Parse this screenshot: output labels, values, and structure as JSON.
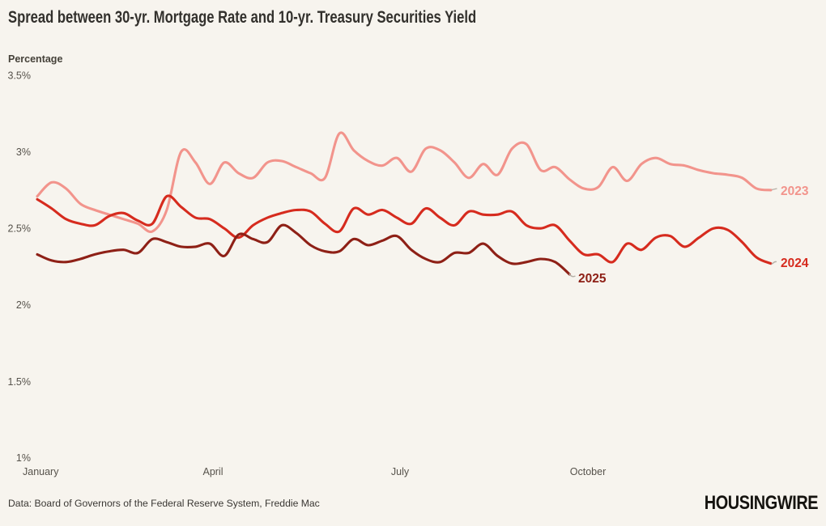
{
  "chart_data": {
    "type": "line",
    "title": "Spread between 30-yr. Mortgage Rate and 10-yr. Treasury Securities Yield",
    "ylabel": "Percentage",
    "xlabel": "",
    "unit": "%",
    "ylim": [
      1.0,
      3.5
    ],
    "y_tick_labels": [
      "3.5%",
      "3%",
      "2.5%",
      "2%",
      "1.5%",
      "1%"
    ],
    "x_tick_labels": [
      "January",
      "April",
      "July",
      "October"
    ],
    "cadence": "weekly",
    "grid": false,
    "legend_position": "end-of-line labels",
    "series": [
      {
        "name": "2023",
        "color": "#f2948c",
        "values": [
          2.71,
          2.8,
          2.76,
          2.66,
          2.62,
          2.59,
          2.56,
          2.53,
          2.48,
          2.62,
          3.0,
          2.93,
          2.79,
          2.93,
          2.86,
          2.83,
          2.93,
          2.94,
          2.9,
          2.86,
          2.83,
          3.12,
          3.01,
          2.94,
          2.91,
          2.96,
          2.87,
          3.02,
          3.01,
          2.93,
          2.83,
          2.92,
          2.85,
          3.02,
          3.05,
          2.88,
          2.9,
          2.82,
          2.76,
          2.77,
          2.9,
          2.81,
          2.92,
          2.96,
          2.92,
          2.91,
          2.88,
          2.86,
          2.85,
          2.83,
          2.76,
          2.75
        ]
      },
      {
        "name": "2024",
        "color": "#d62b1e",
        "values": [
          2.69,
          2.63,
          2.56,
          2.53,
          2.52,
          2.58,
          2.6,
          2.55,
          2.53,
          2.71,
          2.64,
          2.57,
          2.56,
          2.5,
          2.44,
          2.52,
          2.57,
          2.6,
          2.62,
          2.61,
          2.53,
          2.48,
          2.63,
          2.59,
          2.62,
          2.57,
          2.53,
          2.63,
          2.57,
          2.52,
          2.61,
          2.59,
          2.59,
          2.61,
          2.52,
          2.5,
          2.52,
          2.42,
          2.33,
          2.33,
          2.28,
          2.4,
          2.36,
          2.44,
          2.45,
          2.38,
          2.44,
          2.5,
          2.49,
          2.41,
          2.31,
          2.27
        ]
      },
      {
        "name": "2025",
        "color": "#8e2016",
        "values": [
          2.33,
          2.29,
          2.28,
          2.3,
          2.33,
          2.35,
          2.36,
          2.34,
          2.43,
          2.41,
          2.38,
          2.38,
          2.4,
          2.32,
          2.46,
          2.43,
          2.41,
          2.52,
          2.47,
          2.39,
          2.35,
          2.35,
          2.43,
          2.39,
          2.42,
          2.45,
          2.36,
          2.3,
          2.28,
          2.34,
          2.34,
          2.4,
          2.32,
          2.27,
          2.28,
          2.3,
          2.28,
          2.2
        ]
      }
    ]
  },
  "footer": {
    "source": "Data: Board of Governors of the Federal Reserve System, Freddie Mac",
    "logo": "HOUSINGWIRE"
  }
}
